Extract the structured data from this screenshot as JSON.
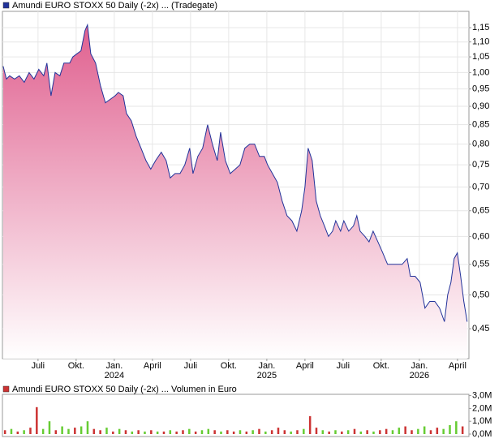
{
  "chart_data": [
    {
      "type": "line",
      "annotation": "1 Tick = 1 Woche",
      "log_y": true,
      "grid": true,
      "area_color": "#e0608f",
      "xlim": [
        -2.8,
        33.9
      ],
      "xticks": [
        {
          "value": 0,
          "label": "Juli"
        },
        {
          "value": 3,
          "label": "Okt."
        },
        {
          "value": 6,
          "label": "Jan.",
          "year": "2024"
        },
        {
          "value": 9,
          "label": "April"
        },
        {
          "value": 12,
          "label": "Juli"
        },
        {
          "value": 15,
          "label": "Okt."
        },
        {
          "value": 18,
          "label": "Jan.",
          "year": "2025"
        },
        {
          "value": 21,
          "label": "April"
        },
        {
          "value": 24,
          "label": "Juli"
        },
        {
          "value": 27,
          "label": "Okt."
        },
        {
          "value": 30,
          "label": "Jan.",
          "year": "2026"
        },
        {
          "value": 33,
          "label": "April"
        }
      ],
      "ylim": [
        0.41,
        1.21
      ],
      "yticks": [
        {
          "value": 0.45,
          "label": "0,45"
        },
        {
          "value": 0.5,
          "label": "0,50"
        },
        {
          "value": 0.55,
          "label": "0,55"
        },
        {
          "value": 0.6,
          "label": "0,60"
        },
        {
          "value": 0.65,
          "label": "0,65"
        },
        {
          "value": 0.7,
          "label": "0,70"
        },
        {
          "value": 0.75,
          "label": "0,75"
        },
        {
          "value": 0.8,
          "label": "0,80"
        },
        {
          "value": 0.85,
          "label": "0,85"
        },
        {
          "value": 0.9,
          "label": "0,90"
        },
        {
          "value": 0.95,
          "label": "0,95"
        },
        {
          "value": 1.0,
          "label": "1,00"
        },
        {
          "value": 1.05,
          "label": "1,05"
        },
        {
          "value": 1.1,
          "label": "1,10"
        },
        {
          "value": 1.15,
          "label": "1,15"
        }
      ],
      "x": [
        -2.74,
        -2.49,
        -2.23,
        -1.85,
        -1.47,
        -1.08,
        -0.7,
        -0.32,
        0.06,
        0.45,
        0.7,
        1.02,
        1.34,
        1.72,
        2.04,
        2.49,
        2.74,
        3.06,
        3.38,
        3.7,
        3.89,
        4.15,
        4.53,
        4.91,
        5.3,
        5.68,
        6.06,
        6.32,
        6.7,
        6.96,
        7.34,
        7.72,
        8.1,
        8.49,
        8.87,
        9.25,
        9.7,
        10.08,
        10.4,
        10.78,
        11.17,
        11.55,
        11.93,
        12.19,
        12.57,
        12.95,
        13.34,
        13.72,
        14.1,
        14.36,
        14.74,
        15.12,
        15.51,
        15.89,
        16.27,
        16.66,
        17.04,
        17.42,
        17.8,
        18.06,
        18.44,
        18.83,
        19.21,
        19.59,
        19.97,
        20.36,
        20.74,
        21.0,
        21.25,
        21.57,
        21.89,
        22.21,
        22.53,
        22.85,
        23.17,
        23.42,
        23.8,
        24.06,
        24.44,
        24.82,
        25.08,
        25.34,
        25.72,
        26.04,
        26.36,
        26.74,
        27.12,
        27.5,
        27.89,
        28.27,
        28.65,
        29.04,
        29.29,
        29.67,
        30.06,
        30.44,
        30.82,
        31.21,
        31.59,
        31.97,
        32.23,
        32.48,
        32.74,
        32.99,
        33.25,
        33.5,
        33.76
      ],
      "series": [
        {
          "name": "Amundi EURO STOXX 50 Daily (-2x) ... (Tradegate)",
          "color": "#22339a",
          "values": [
            1.02,
            0.98,
            0.99,
            0.98,
            0.99,
            0.97,
            1.0,
            0.98,
            1.01,
            0.99,
            1.03,
            0.93,
            1.0,
            0.99,
            1.03,
            1.03,
            1.05,
            1.06,
            1.07,
            1.14,
            1.16,
            1.06,
            1.03,
            0.96,
            0.91,
            0.92,
            0.93,
            0.94,
            0.93,
            0.88,
            0.86,
            0.82,
            0.79,
            0.76,
            0.74,
            0.76,
            0.78,
            0.76,
            0.72,
            0.73,
            0.73,
            0.75,
            0.79,
            0.73,
            0.77,
            0.79,
            0.85,
            0.8,
            0.76,
            0.83,
            0.76,
            0.73,
            0.74,
            0.75,
            0.79,
            0.8,
            0.8,
            0.77,
            0.77,
            0.75,
            0.73,
            0.71,
            0.67,
            0.64,
            0.63,
            0.61,
            0.65,
            0.7,
            0.79,
            0.76,
            0.67,
            0.64,
            0.62,
            0.6,
            0.61,
            0.63,
            0.61,
            0.63,
            0.61,
            0.62,
            0.64,
            0.61,
            0.6,
            0.59,
            0.61,
            0.59,
            0.57,
            0.55,
            0.55,
            0.55,
            0.55,
            0.56,
            0.53,
            0.53,
            0.52,
            0.48,
            0.49,
            0.49,
            0.48,
            0.46,
            0.5,
            0.52,
            0.56,
            0.57,
            0.53,
            0.49,
            0.46
          ]
        }
      ]
    },
    {
      "type": "bar",
      "ylim": [
        0,
        3100000
      ],
      "yticks": [
        {
          "value": 0,
          "label": "0,0M"
        },
        {
          "value": 1000000,
          "label": "1,0M"
        },
        {
          "value": 2000000,
          "label": "2,0M"
        },
        {
          "value": 3000000,
          "label": "3,0M"
        }
      ],
      "xlim": [
        -2.8,
        33.9
      ],
      "x": [
        -2.6,
        -2.1,
        -1.6,
        -1.1,
        -0.6,
        -0.1,
        0.4,
        0.9,
        1.4,
        1.9,
        2.4,
        2.9,
        3.4,
        3.9,
        4.4,
        4.9,
        5.4,
        5.9,
        6.4,
        6.9,
        7.4,
        7.9,
        8.4,
        8.9,
        9.4,
        9.9,
        10.4,
        10.9,
        11.4,
        11.9,
        12.4,
        12.9,
        13.4,
        13.9,
        14.4,
        14.9,
        15.4,
        15.9,
        16.4,
        16.9,
        17.4,
        17.9,
        18.4,
        18.9,
        19.4,
        19.9,
        20.4,
        20.9,
        21.4,
        21.9,
        22.4,
        22.9,
        23.4,
        23.9,
        24.4,
        24.9,
        25.4,
        25.9,
        26.4,
        26.9,
        27.4,
        27.9,
        28.4,
        28.9,
        29.4,
        29.9,
        30.4,
        30.9,
        31.4,
        31.9,
        32.4,
        32.9,
        33.4
      ],
      "series": [
        {
          "name": "Amundi EURO STOXX 50 Daily (-2x) ... Volumen in Euro",
          "color": "#cc3333",
          "values": [
            300000,
            400000,
            200000,
            300000,
            500000,
            2100000,
            400000,
            1000000,
            300000,
            600000,
            400000,
            500000,
            600000,
            1000000,
            400000,
            300000,
            500000,
            200000,
            400000,
            300000,
            200000,
            300000,
            200000,
            300000,
            200000,
            200000,
            300000,
            200000,
            300000,
            400000,
            200000,
            300000,
            400000,
            300000,
            200000,
            300000,
            200000,
            300000,
            200000,
            300000,
            400000,
            200000,
            300000,
            500000,
            300000,
            200000,
            300000,
            400000,
            1400000,
            500000,
            300000,
            200000,
            300000,
            200000,
            300000,
            400000,
            200000,
            300000,
            200000,
            300000,
            400000,
            300000,
            500000,
            600000,
            300000,
            400000,
            600000,
            300000,
            500000,
            400000,
            700000,
            1000000,
            600000
          ],
          "colors": [
            "#cc3333",
            "#66cc33",
            "#cc3333",
            "#66cc33",
            "#cc3333",
            "#cc3333",
            "#66cc33",
            "#66cc33",
            "#cc3333",
            "#66cc33",
            "#66cc33",
            "#cc3333",
            "#66cc33",
            "#66cc33",
            "#cc3333",
            "#cc3333",
            "#66cc33",
            "#cc3333",
            "#66cc33",
            "#cc3333",
            "#66cc33",
            "#cc3333",
            "#66cc33",
            "#cc3333",
            "#66cc33",
            "#cc3333",
            "#66cc33",
            "#cc3333",
            "#cc3333",
            "#66cc33",
            "#cc3333",
            "#66cc33",
            "#66cc33",
            "#cc3333",
            "#66cc33",
            "#cc3333",
            "#cc3333",
            "#66cc33",
            "#cc3333",
            "#66cc33",
            "#cc3333",
            "#66cc33",
            "#cc3333",
            "#cc3333",
            "#cc3333",
            "#66cc33",
            "#cc3333",
            "#66cc33",
            "#cc3333",
            "#cc3333",
            "#66cc33",
            "#cc3333",
            "#66cc33",
            "#cc3333",
            "#66cc33",
            "#cc3333",
            "#66cc33",
            "#cc3333",
            "#66cc33",
            "#cc3333",
            "#cc3333",
            "#66cc33",
            "#66cc33",
            "#cc3333",
            "#cc3333",
            "#66cc33",
            "#66cc33",
            "#cc3333",
            "#cc3333",
            "#66cc33",
            "#66cc33",
            "#66cc33",
            "#cc3333"
          ]
        }
      ]
    }
  ]
}
